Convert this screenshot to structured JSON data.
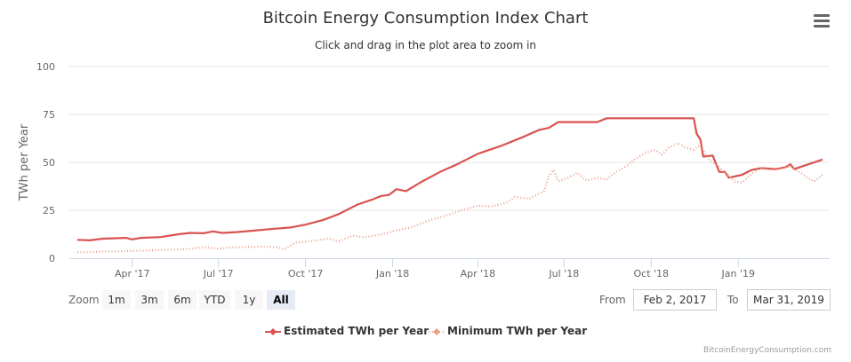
{
  "title": "Bitcoin Energy Consumption Index Chart",
  "subtitle": "Click and drag in the plot area to zoom in",
  "menu_icon": "hamburger-menu-icon",
  "zoom": {
    "label": "Zoom",
    "buttons": [
      {
        "label": "1m",
        "active": false
      },
      {
        "label": "3m",
        "active": false
      },
      {
        "label": "6m",
        "active": false
      },
      {
        "label": "YTD",
        "active": false
      },
      {
        "label": "1y",
        "active": false
      },
      {
        "label": "All",
        "active": true
      }
    ]
  },
  "range": {
    "from_label": "From",
    "from_value": "Feb 2, 2017",
    "to_label": "To",
    "to_value": "Mar 31, 2019"
  },
  "credit": "BitcoinEnergyConsumption.com",
  "colors": {
    "estimated": "#d9534f",
    "minimum": "#e8a088",
    "grid": "#e6e6e6",
    "axis": "#ccd6eb"
  },
  "chart_data": {
    "type": "line",
    "title": "Bitcoin Energy Consumption Index Chart",
    "subtitle": "Click and drag in the plot area to zoom in",
    "xlabel": "",
    "ylabel": "TWh per Year",
    "ylim": [
      0,
      100
    ],
    "yticks": [
      0,
      25,
      50,
      75,
      100
    ],
    "xlim": [
      "2017-02-02",
      "2019-03-31"
    ],
    "xticks": [
      {
        "date": "2017-04-01",
        "label": "Apr '17"
      },
      {
        "date": "2017-07-01",
        "label": "Jul '17"
      },
      {
        "date": "2017-10-01",
        "label": "Oct '17"
      },
      {
        "date": "2018-01-01",
        "label": "Jan '18"
      },
      {
        "date": "2018-04-01",
        "label": "Apr '18"
      },
      {
        "date": "2018-07-01",
        "label": "Jul '18"
      },
      {
        "date": "2018-10-01",
        "label": "Oct '18"
      },
      {
        "date": "2019-01-01",
        "label": "Jan '19"
      }
    ],
    "grid": true,
    "legend": "bottom-center",
    "series": [
      {
        "name": "Estimated TWh per Year",
        "style": "solid",
        "points": [
          [
            "2017-02-02",
            9.6
          ],
          [
            "2017-02-15",
            9.3
          ],
          [
            "2017-03-01",
            10.2
          ],
          [
            "2017-03-15",
            10.4
          ],
          [
            "2017-03-25",
            10.6
          ],
          [
            "2017-04-01",
            9.8
          ],
          [
            "2017-04-10",
            10.6
          ],
          [
            "2017-05-01",
            11.0
          ],
          [
            "2017-05-20",
            12.5
          ],
          [
            "2017-06-01",
            13.2
          ],
          [
            "2017-06-15",
            13.0
          ],
          [
            "2017-06-25",
            14.0
          ],
          [
            "2017-07-05",
            13.2
          ],
          [
            "2017-07-20",
            13.6
          ],
          [
            "2017-08-05",
            14.3
          ],
          [
            "2017-08-25",
            15.2
          ],
          [
            "2017-09-15",
            16.0
          ],
          [
            "2017-10-01",
            17.5
          ],
          [
            "2017-10-20",
            20.0
          ],
          [
            "2017-11-05",
            23.0
          ],
          [
            "2017-11-25",
            28.0
          ],
          [
            "2017-12-10",
            30.5
          ],
          [
            "2017-12-20",
            32.5
          ],
          [
            "2017-12-28",
            33.0
          ],
          [
            "2018-01-05",
            36.0
          ],
          [
            "2018-01-15",
            35.0
          ],
          [
            "2018-02-01",
            40.0
          ],
          [
            "2018-02-20",
            45.0
          ],
          [
            "2018-03-10",
            49.0
          ],
          [
            "2018-04-01",
            54.5
          ],
          [
            "2018-04-25",
            58.5
          ],
          [
            "2018-05-20",
            63.5
          ],
          [
            "2018-06-05",
            67.0
          ],
          [
            "2018-06-15",
            68.0
          ],
          [
            "2018-06-25",
            71.0
          ],
          [
            "2018-07-15",
            71.0
          ],
          [
            "2018-08-05",
            71.0
          ],
          [
            "2018-08-15",
            73.0
          ],
          [
            "2018-09-15",
            73.0
          ],
          [
            "2018-10-15",
            73.0
          ],
          [
            "2018-11-15",
            73.0
          ],
          [
            "2018-11-18",
            65.0
          ],
          [
            "2018-11-22",
            62.0
          ],
          [
            "2018-11-25",
            53.0
          ],
          [
            "2018-12-05",
            53.5
          ],
          [
            "2018-12-12",
            45.0
          ],
          [
            "2018-12-18",
            45.0
          ],
          [
            "2018-12-22",
            42.0
          ],
          [
            "2019-01-05",
            43.5
          ],
          [
            "2019-01-15",
            46.0
          ],
          [
            "2019-01-25",
            47.0
          ],
          [
            "2019-02-10",
            46.5
          ],
          [
            "2019-02-20",
            47.5
          ],
          [
            "2019-02-25",
            49.0
          ],
          [
            "2019-03-01",
            46.5
          ],
          [
            "2019-03-31",
            51.5
          ]
        ]
      },
      {
        "name": "Minimum TWh per Year",
        "style": "dotted",
        "points": [
          [
            "2017-02-02",
            3.0
          ],
          [
            "2017-03-01",
            3.5
          ],
          [
            "2017-04-01",
            3.8
          ],
          [
            "2017-05-01",
            4.2
          ],
          [
            "2017-06-01",
            4.8
          ],
          [
            "2017-06-15",
            5.8
          ],
          [
            "2017-07-01",
            5.0
          ],
          [
            "2017-07-15",
            5.6
          ],
          [
            "2017-08-15",
            6.0
          ],
          [
            "2017-09-01",
            5.8
          ],
          [
            "2017-09-08",
            4.6
          ],
          [
            "2017-09-20",
            8.0
          ],
          [
            "2017-10-15",
            9.5
          ],
          [
            "2017-10-25",
            10.2
          ],
          [
            "2017-11-05",
            8.8
          ],
          [
            "2017-11-20",
            11.8
          ],
          [
            "2017-12-01",
            10.8
          ],
          [
            "2017-12-20",
            12.5
          ],
          [
            "2018-01-05",
            14.5
          ],
          [
            "2018-01-20",
            16.0
          ],
          [
            "2018-02-10",
            20.0
          ],
          [
            "2018-02-25",
            22.0
          ],
          [
            "2018-03-15",
            25.0
          ],
          [
            "2018-04-01",
            27.5
          ],
          [
            "2018-04-15",
            27.0
          ],
          [
            "2018-05-01",
            29.0
          ],
          [
            "2018-05-10",
            32.0
          ],
          [
            "2018-05-25",
            31.0
          ],
          [
            "2018-06-10",
            35.0
          ],
          [
            "2018-06-15",
            43.0
          ],
          [
            "2018-06-20",
            46.0
          ],
          [
            "2018-06-25",
            40.0
          ],
          [
            "2018-07-05",
            42.0
          ],
          [
            "2018-07-15",
            44.5
          ],
          [
            "2018-07-25",
            40.5
          ],
          [
            "2018-08-05",
            42.0
          ],
          [
            "2018-08-15",
            41.0
          ],
          [
            "2018-08-25",
            45.0
          ],
          [
            "2018-09-05",
            48.0
          ],
          [
            "2018-09-15",
            52.0
          ],
          [
            "2018-09-25",
            55.0
          ],
          [
            "2018-10-05",
            56.5
          ],
          [
            "2018-10-12",
            54.0
          ],
          [
            "2018-10-20",
            58.0
          ],
          [
            "2018-10-30",
            60.0
          ],
          [
            "2018-11-05",
            58.0
          ],
          [
            "2018-11-15",
            56.5
          ],
          [
            "2018-11-22",
            59.0
          ],
          [
            "2018-11-30",
            52.0
          ],
          [
            "2018-12-10",
            48.0
          ],
          [
            "2018-12-20",
            44.0
          ],
          [
            "2018-12-28",
            40.0
          ],
          [
            "2019-01-05",
            39.5
          ],
          [
            "2019-01-15",
            44.0
          ],
          [
            "2019-01-25",
            47.0
          ],
          [
            "2019-02-05",
            46.0
          ],
          [
            "2019-02-15",
            47.0
          ],
          [
            "2019-02-25",
            48.0
          ],
          [
            "2019-03-05",
            45.5
          ],
          [
            "2019-03-15",
            42.0
          ],
          [
            "2019-03-22",
            40.0
          ],
          [
            "2019-03-31",
            43.5
          ]
        ]
      }
    ]
  }
}
